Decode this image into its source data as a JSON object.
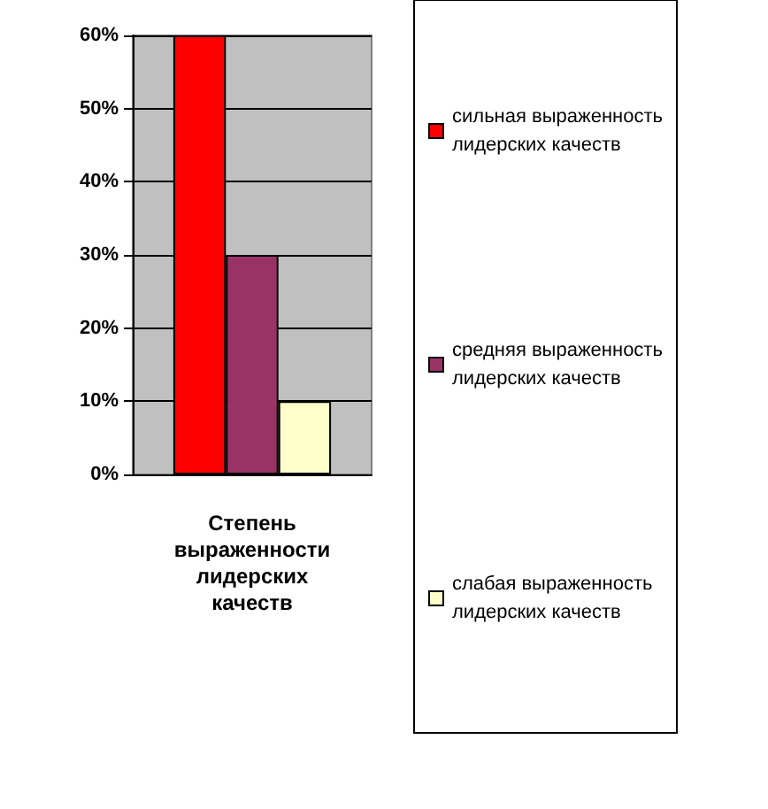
{
  "chart_data": {
    "type": "bar",
    "categories": [
      "Степень выраженности лидерских качеств"
    ],
    "series": [
      {
        "name": "сильная выраженность лидерских качеств",
        "color": "#ff0000",
        "values": [
          60
        ]
      },
      {
        "name": "средняя выраженность лидерских качеств",
        "color": "#993366",
        "values": [
          30
        ]
      },
      {
        "name": "слабая выраженность лидерских качеств",
        "color": "#ffffcc",
        "values": [
          10
        ]
      }
    ],
    "ylim": [
      0,
      60
    ],
    "yticks": [
      {
        "value": 0,
        "label": "0%"
      },
      {
        "value": 10,
        "label": "10%"
      },
      {
        "value": 20,
        "label": "20%"
      },
      {
        "value": 30,
        "label": "30%"
      },
      {
        "value": 40,
        "label": "40%"
      },
      {
        "value": 50,
        "label": "50%"
      },
      {
        "value": 60,
        "label": "60%"
      }
    ],
    "grid": true,
    "legend": "right"
  }
}
